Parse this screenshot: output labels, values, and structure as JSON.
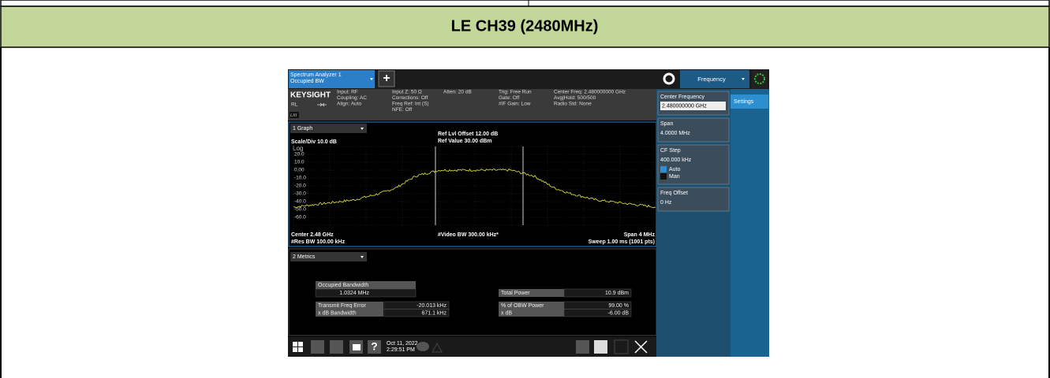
{
  "header": {
    "title": "LE CH39 (2480MHz)"
  },
  "analyzer": {
    "tab": {
      "line1": "Spectrum Analyzer 1",
      "line2": "Occupied BW"
    },
    "add_button": "+",
    "menu": "Frequency",
    "logo": "KEYSIGHT",
    "rl": "RL",
    "lxi": "LXI",
    "status": [
      [
        "Input: RF",
        "Coupling: AC",
        "Align: Auto"
      ],
      [
        "Input Z: 50 Ω",
        "Corrections: Off",
        "Freq Ref: Int (S)",
        "NFE: Off"
      ],
      [
        "Atten: 20 dB"
      ],
      [
        "Trig: Free Run",
        "Gate: Off",
        "#IF Gain: Low"
      ],
      [
        "Center Freq: 2.480000000 GHz",
        "Avg|Hold: 500/500",
        "Radio Std: None"
      ]
    ],
    "graph": {
      "selector": "1 Graph",
      "scale": "Scale/Div 10.0 dB",
      "log": "Log",
      "ref": [
        "Ref Lvl Offset 12.00 dB",
        "Ref Value 30.00 dBm"
      ],
      "y_labels": [
        "20.0",
        "10.0",
        "0.00",
        "-10.0",
        "-20.0",
        "-30.0",
        "-40.0",
        "-50.0",
        "-60.0"
      ],
      "footer_left": [
        "Center 2.48 GHz",
        "#Res BW 100.00 kHz"
      ],
      "footer_middle": "#Video BW 300.00 kHz*",
      "footer_right": [
        "Span 4 MHz",
        "Sweep 1.00 ms (1001 pts)"
      ]
    },
    "metrics": {
      "selector": "2 Metrics",
      "obw": {
        "label": "Occupied Bandwidth",
        "value": "1.0324 MHz"
      },
      "left": [
        {
          "label": "Transmit Freq Error",
          "value": "-20.013 kHz"
        },
        {
          "label": "x dB Bandwidth",
          "value": "671.1 kHz"
        }
      ],
      "total": {
        "label": "Total Power",
        "value": "10.9 dBm"
      },
      "right": [
        {
          "label": "% of OBW Power",
          "value": "99.00 %"
        },
        {
          "label": "x dB",
          "value": "-6.00 dB"
        }
      ]
    },
    "taskbar": {
      "help": "?",
      "date": [
        "Oct 11, 2022",
        "2:29:51 PM"
      ]
    },
    "side": {
      "tab": "Settings",
      "items": [
        {
          "label": "Center Frequency",
          "value": "2.480000000 GHz"
        },
        {
          "label": "Span",
          "value": "4.0000 MHz"
        },
        {
          "label": "CF Step",
          "value": "400.000 kHz",
          "options": [
            "Auto",
            "Man"
          ]
        },
        {
          "label": "Freq Offset",
          "value": "0 Hz"
        }
      ]
    }
  }
}
